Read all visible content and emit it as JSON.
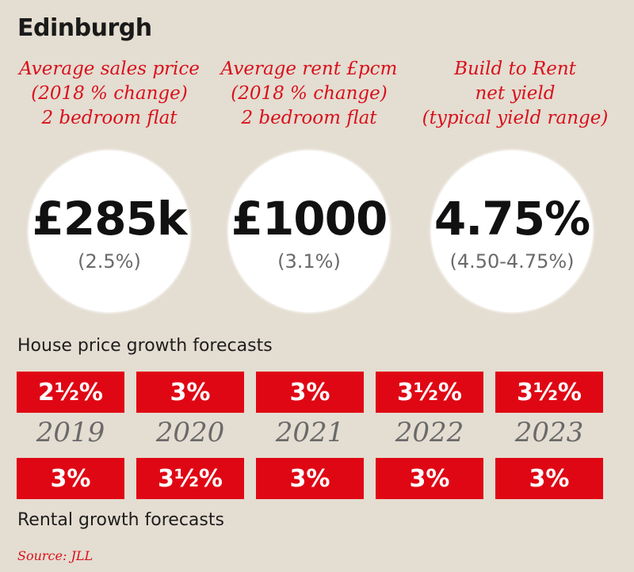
{
  "title": "Edinburgh",
  "metrics": [
    {
      "heading": [
        "Average sales price",
        "(2018 % change)",
        "2 bedroom flat"
      ],
      "value": "£285k",
      "sub": "(2.5%)"
    },
    {
      "heading": [
        "Average rent £pcm",
        "(2018 % change)",
        "2 bedroom flat"
      ],
      "value": "£1000",
      "sub": "(3.1%)"
    },
    {
      "heading": [
        "Build to Rent",
        "net yield",
        "(typical yield range)"
      ],
      "value": "4.75%",
      "sub": "(4.50-4.75%)"
    }
  ],
  "house_price_label": "House price growth forecasts",
  "years": [
    "2019",
    "2020",
    "2021",
    "2022",
    "2023"
  ],
  "house_price_forecasts": [
    "2½%",
    "3%",
    "3%",
    "3½%",
    "3½%"
  ],
  "rental_forecasts": [
    "3%",
    "3½%",
    "3%",
    "3%",
    "3%"
  ],
  "rental_label": "Rental growth forecasts",
  "source": "Source: JLL",
  "colors": {
    "background": "#e4ddd1",
    "accent_red": "#e00714",
    "heading_red": "#d8101c",
    "circle": "#ffffff"
  }
}
